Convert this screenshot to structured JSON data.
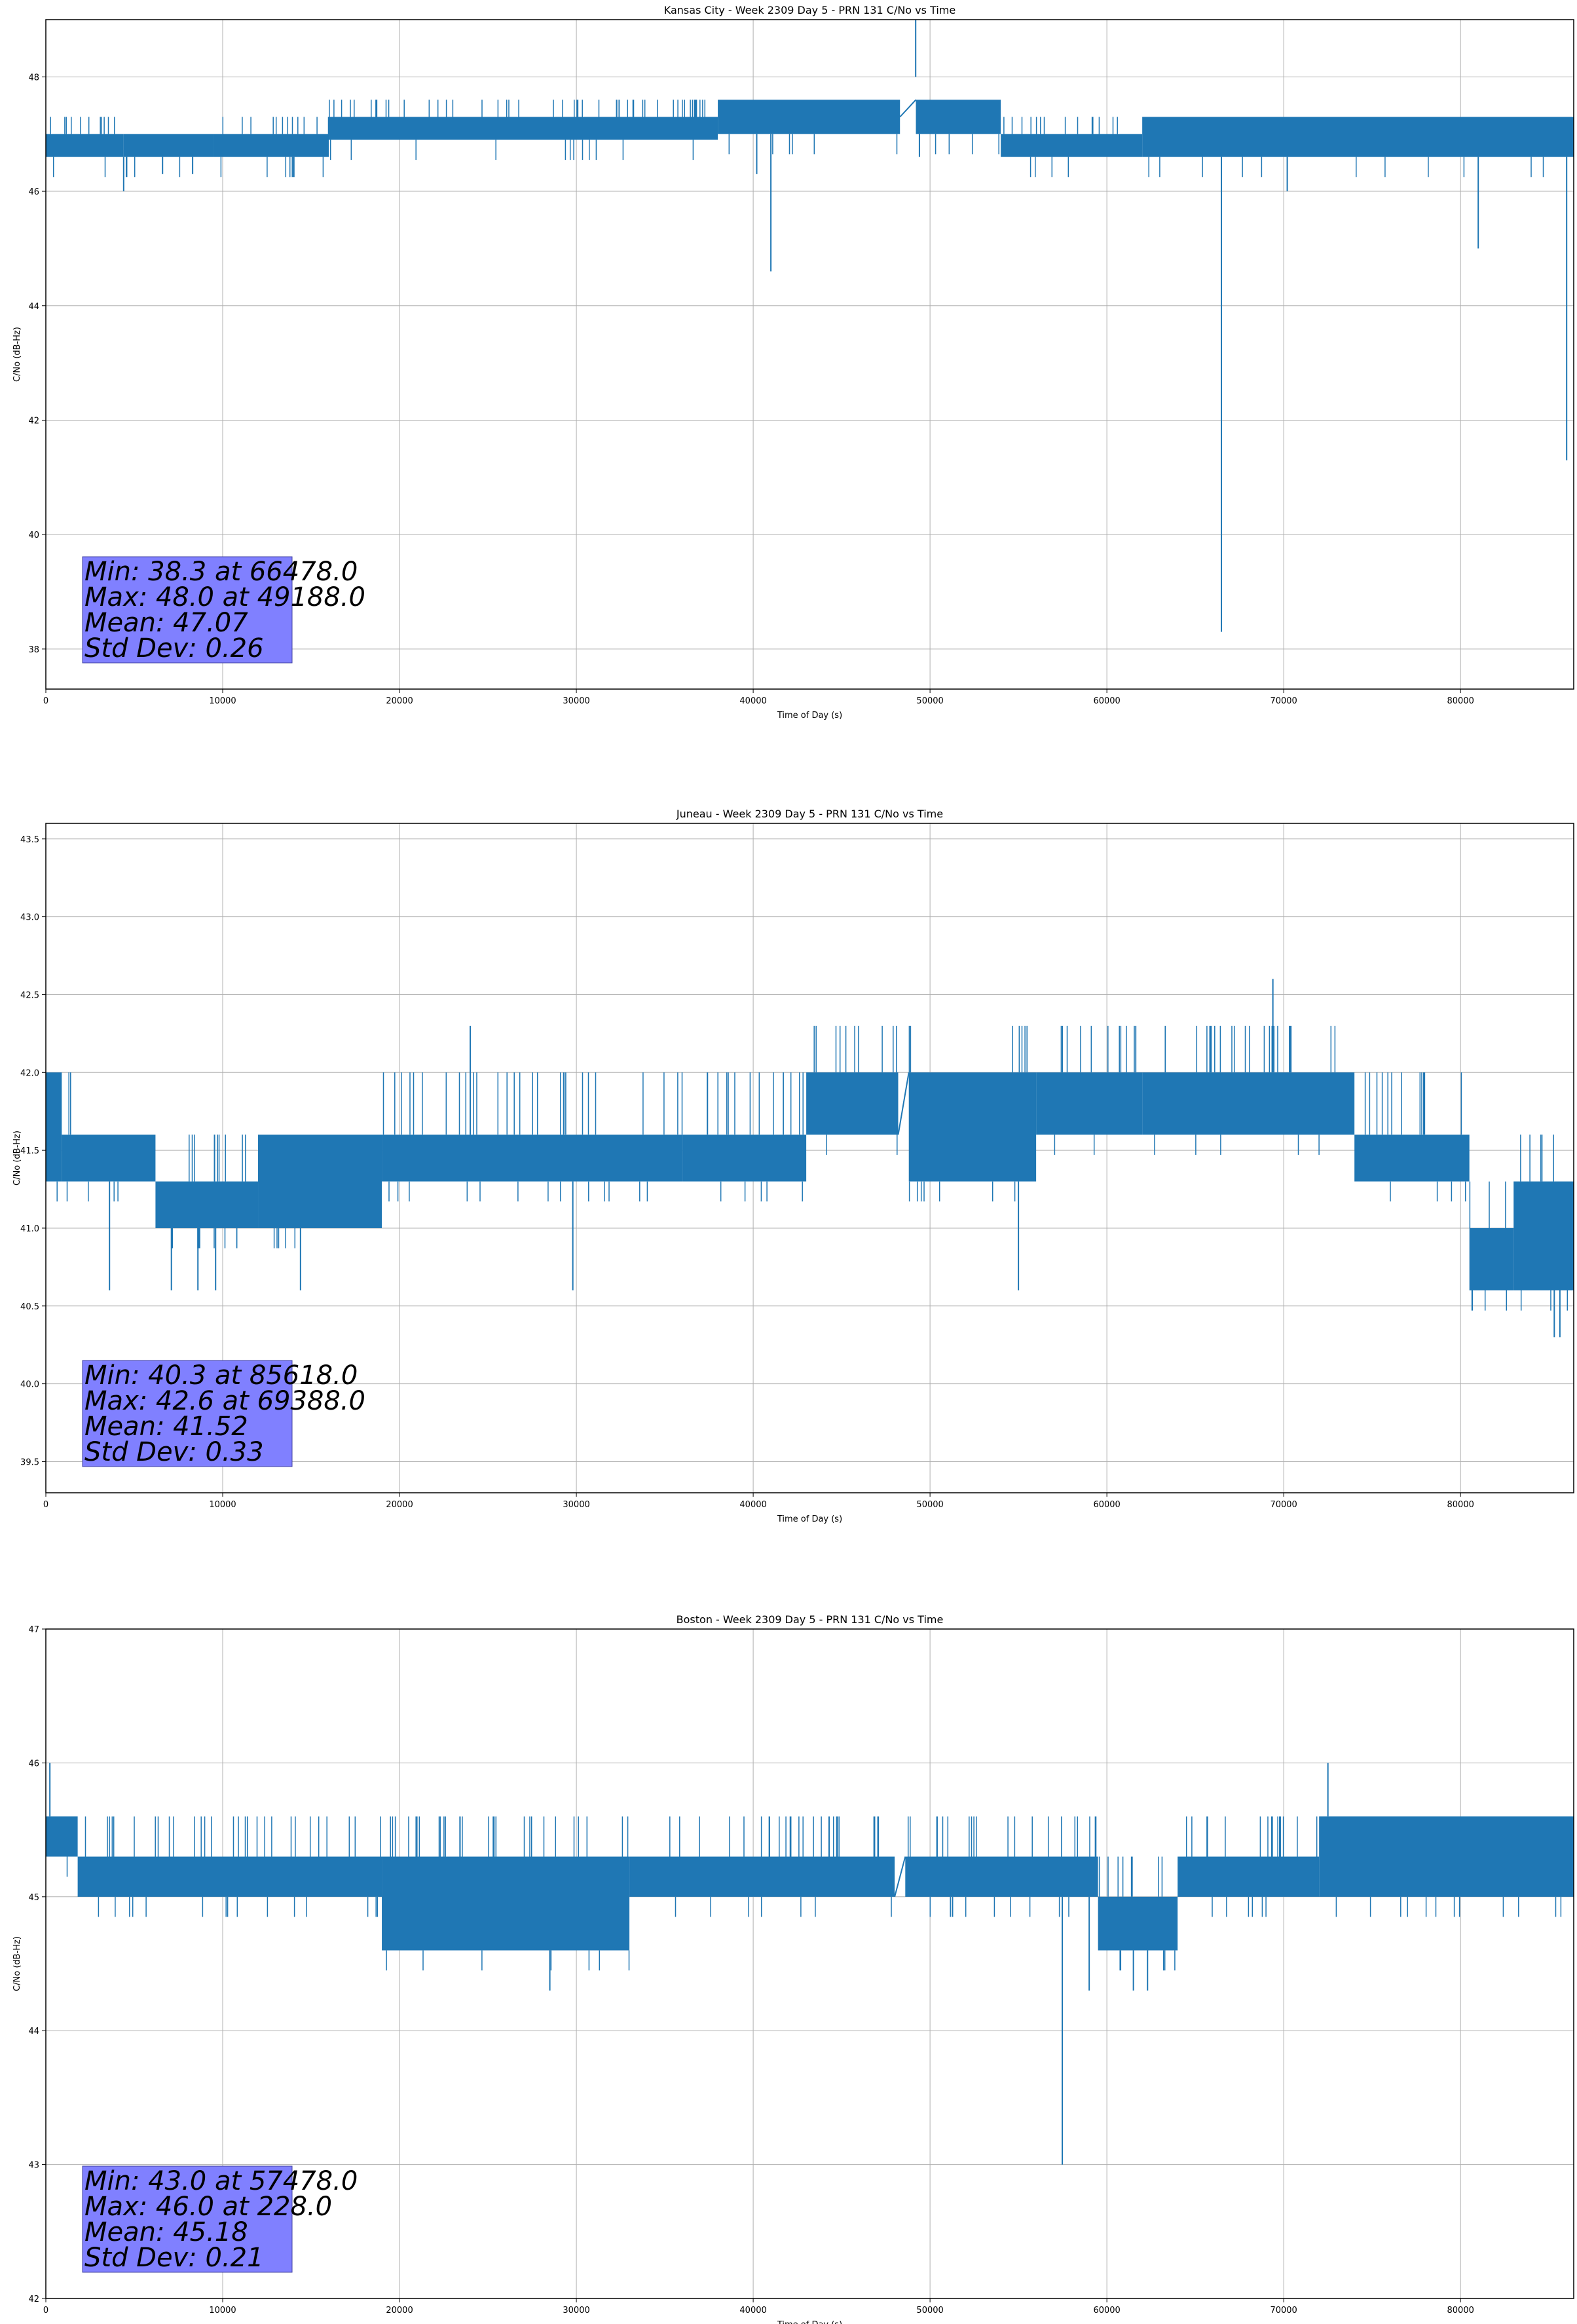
{
  "figure": {
    "line_color": "#1f77b4",
    "stats_box_color": "#8080ff",
    "grid": true
  },
  "chart_data": [
    {
      "type": "line",
      "title": "Kansas City - Week 2309 Day 5 - PRN 131 C/No vs Time",
      "xlabel": "Time of Day (s)",
      "ylabel": "C/No (dB-Hz)",
      "xlim": [
        0,
        86400
      ],
      "ylim": [
        37.3,
        49.0
      ],
      "xticks": [
        0,
        10000,
        20000,
        30000,
        40000,
        50000,
        60000,
        70000,
        80000
      ],
      "yticks": [
        38,
        40,
        42,
        44,
        46,
        48
      ],
      "ytick_decimals": 0,
      "stats": [
        "Min: 38.3 at 66478.0",
        "Max: 48.0 at 49188.0",
        "Mean: 47.07",
        "Std Dev: 0.26"
      ],
      "band_segments": [
        {
          "x": [
            0,
            4400
          ],
          "low": 46.6,
          "high": 47.0,
          "spike_high": 47.3
        },
        {
          "x": [
            4400,
            9500
          ],
          "low": 46.6,
          "high": 47.0,
          "spike_high": 47.0
        },
        {
          "x": [
            9500,
            16000
          ],
          "low": 46.6,
          "high": 47.0,
          "spike_high": 47.3
        },
        {
          "x": [
            16000,
            38000
          ],
          "low": 46.9,
          "high": 47.3,
          "spike_high": 47.6
        },
        {
          "x": [
            38000,
            48300
          ],
          "low": 47.0,
          "high": 47.6,
          "spike_high": 47.6
        },
        {
          "x": [
            49200,
            54000
          ],
          "low": 47.0,
          "high": 47.6,
          "spike_high": 47.6
        },
        {
          "x": [
            54000,
            62000
          ],
          "low": 46.6,
          "high": 47.0,
          "spike_high": 47.3
        },
        {
          "x": [
            62000,
            86400
          ],
          "low": 46.6,
          "high": 47.3,
          "spike_high": 47.3
        }
      ],
      "gap_bridges": [
        {
          "x": [
            48300,
            49200
          ],
          "y": [
            47.3,
            47.6
          ]
        }
      ],
      "dips": [
        {
          "x": 4400,
          "y": 46.0
        },
        {
          "x": 6600,
          "y": 46.3
        },
        {
          "x": 8300,
          "y": 46.3
        },
        {
          "x": 40200,
          "y": 46.3
        },
        {
          "x": 41000,
          "y": 44.6
        },
        {
          "x": 49400,
          "y": 46.6
        },
        {
          "x": 66478,
          "y": 38.3
        },
        {
          "x": 70200,
          "y": 46.0
        },
        {
          "x": 81000,
          "y": 45.0
        },
        {
          "x": 86000,
          "y": 41.3
        }
      ],
      "peaks": [
        {
          "x": 49188,
          "y": 48.0
        }
      ]
    },
    {
      "type": "line",
      "title": "Juneau - Week 2309 Day 5 - PRN 131 C/No vs Time",
      "xlabel": "Time of Day (s)",
      "ylabel": "C/No (dB-Hz)",
      "xlim": [
        0,
        86400
      ],
      "ylim": [
        39.3,
        43.6
      ],
      "xticks": [
        0,
        10000,
        20000,
        30000,
        40000,
        50000,
        60000,
        70000,
        80000
      ],
      "yticks": [
        39.5,
        40.0,
        40.5,
        41.0,
        41.5,
        42.0,
        42.5,
        43.0,
        43.5
      ],
      "ytick_decimals": 1,
      "stats": [
        "Min: 40.3 at 85618.0",
        "Max: 42.6 at 69388.0",
        "Mean: 41.52",
        "Std Dev: 0.33"
      ],
      "band_segments": [
        {
          "x": [
            0,
            900
          ],
          "low": 41.3,
          "high": 42.0,
          "spike_high": 42.0
        },
        {
          "x": [
            900,
            2000
          ],
          "low": 41.3,
          "high": 41.6,
          "spike_high": 42.0
        },
        {
          "x": [
            2000,
            6200
          ],
          "low": 41.3,
          "high": 41.6,
          "spike_high": 41.6
        },
        {
          "x": [
            6200,
            12000
          ],
          "low": 41.0,
          "high": 41.3,
          "spike_high": 41.6
        },
        {
          "x": [
            12000,
            19000
          ],
          "low": 41.0,
          "high": 41.6,
          "spike_high": 41.6
        },
        {
          "x": [
            19000,
            36000
          ],
          "low": 41.3,
          "high": 41.6,
          "spike_high": 42.0
        },
        {
          "x": [
            36000,
            43000
          ],
          "low": 41.3,
          "high": 41.6,
          "spike_high": 42.0
        },
        {
          "x": [
            43000,
            48200
          ],
          "low": 41.6,
          "high": 42.0,
          "spike_high": 42.3
        },
        {
          "x": [
            48800,
            56000
          ],
          "low": 41.3,
          "high": 42.0,
          "spike_high": 42.3
        },
        {
          "x": [
            56000,
            62000
          ],
          "low": 41.6,
          "high": 42.0,
          "spike_high": 42.3
        },
        {
          "x": [
            62000,
            74000
          ],
          "low": 41.6,
          "high": 42.0,
          "spike_high": 42.3
        },
        {
          "x": [
            74000,
            80500
          ],
          "low": 41.3,
          "high": 41.6,
          "spike_high": 42.0
        },
        {
          "x": [
            80500,
            83000
          ],
          "low": 40.6,
          "high": 41.0,
          "spike_high": 41.3
        },
        {
          "x": [
            83000,
            86400
          ],
          "low": 40.6,
          "high": 41.3,
          "spike_high": 41.6
        }
      ],
      "gap_bridges": [
        {
          "x": [
            48200,
            48800
          ],
          "y": [
            41.6,
            42.0
          ]
        }
      ],
      "dips": [
        {
          "x": 3600,
          "y": 40.6
        },
        {
          "x": 7100,
          "y": 40.6
        },
        {
          "x": 8600,
          "y": 40.6
        },
        {
          "x": 9600,
          "y": 40.6
        },
        {
          "x": 14400,
          "y": 40.6
        },
        {
          "x": 29800,
          "y": 40.6
        },
        {
          "x": 55000,
          "y": 40.6
        },
        {
          "x": 85300,
          "y": 40.3
        },
        {
          "x": 85618,
          "y": 40.3
        }
      ],
      "peaks": [
        {
          "x": 24000,
          "y": 42.3
        },
        {
          "x": 69388,
          "y": 42.6
        }
      ]
    },
    {
      "type": "line",
      "title": "Boston - Week 2309 Day 5 - PRN 131 C/No vs Time",
      "xlabel": "Time of Day (s)",
      "ylabel": "C/No (dB-Hz)",
      "xlim": [
        0,
        86400
      ],
      "ylim": [
        42.0,
        47.0
      ],
      "xticks": [
        0,
        10000,
        20000,
        30000,
        40000,
        50000,
        60000,
        70000,
        80000
      ],
      "yticks": [
        42,
        43,
        44,
        45,
        46,
        47
      ],
      "ytick_decimals": 0,
      "stats": [
        "Min: 43.0 at 57478.0",
        "Max: 46.0 at 228.0",
        "Mean: 45.18",
        "Std Dev: 0.21"
      ],
      "band_segments": [
        {
          "x": [
            0,
            1800
          ],
          "low": 45.3,
          "high": 45.6,
          "spike_high": 45.6
        },
        {
          "x": [
            1800,
            19000
          ],
          "low": 45.0,
          "high": 45.3,
          "spike_high": 45.6
        },
        {
          "x": [
            19000,
            33000
          ],
          "low": 44.6,
          "high": 45.3,
          "spike_high": 45.6
        },
        {
          "x": [
            33000,
            48000
          ],
          "low": 45.0,
          "high": 45.3,
          "spike_high": 45.6
        },
        {
          "x": [
            48600,
            59500
          ],
          "low": 45.0,
          "high": 45.3,
          "spike_high": 45.6
        },
        {
          "x": [
            59500,
            64000
          ],
          "low": 44.6,
          "high": 45.0,
          "spike_high": 45.3
        },
        {
          "x": [
            64000,
            72000
          ],
          "low": 45.0,
          "high": 45.3,
          "spike_high": 45.6
        },
        {
          "x": [
            72000,
            86400
          ],
          "low": 45.0,
          "high": 45.6,
          "spike_high": 45.6
        }
      ],
      "gap_bridges": [
        {
          "x": [
            48000,
            48600
          ],
          "y": [
            45.0,
            45.3
          ]
        }
      ],
      "dips": [
        {
          "x": 28500,
          "y": 44.3
        },
        {
          "x": 57478,
          "y": 43.0
        },
        {
          "x": 59000,
          "y": 44.3
        },
        {
          "x": 61500,
          "y": 44.3
        },
        {
          "x": 62300,
          "y": 44.3
        }
      ],
      "peaks": [
        {
          "x": 228,
          "y": 46.0
        },
        {
          "x": 72500,
          "y": 46.0
        }
      ]
    }
  ]
}
